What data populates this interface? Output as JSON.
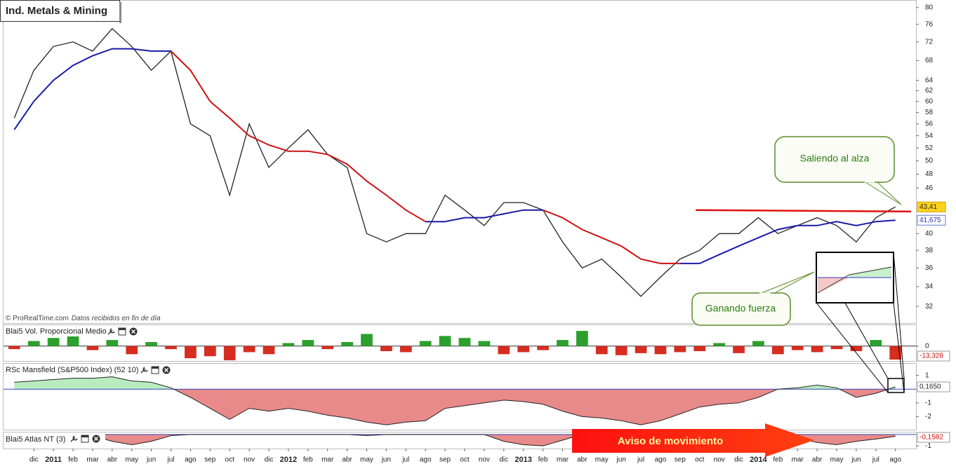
{
  "chart_data": [
    {
      "type": "line",
      "title": "Ind. Metals & Mining",
      "log": true,
      "x": [
        -1,
        0,
        1,
        2,
        3,
        4,
        5,
        6,
        7,
        8,
        9,
        10,
        11,
        12,
        13,
        14,
        15,
        16,
        17,
        18,
        19,
        20,
        21,
        22,
        23,
        24,
        25,
        26,
        27,
        28,
        29,
        30,
        31,
        32,
        33,
        34,
        35,
        36,
        37,
        38,
        39,
        40,
        41,
        42,
        43,
        44
      ],
      "series": [
        {
          "color": "#222222",
          "values": [
            57,
            66,
            71,
            72,
            70,
            75,
            71,
            66,
            70,
            56,
            54,
            45,
            56,
            49,
            52,
            55,
            51,
            49,
            40,
            39,
            40,
            40,
            45,
            43,
            41,
            44,
            44,
            43,
            39,
            36,
            37,
            35,
            33,
            35,
            37,
            38,
            40,
            40,
            42,
            40,
            41,
            42,
            41,
            39,
            42,
            43.41
          ]
        },
        {
          "color": "#1a1aa8",
          "values": [
            55,
            60,
            64,
            67,
            69,
            70.5,
            70.5,
            70,
            70,
            null,
            null,
            null,
            null,
            null,
            null,
            null,
            null,
            null,
            null,
            null,
            null,
            41.5,
            41.5,
            42,
            42,
            42.5,
            43,
            43,
            null,
            null,
            null,
            null,
            null,
            null,
            36.5,
            36.5,
            37.5,
            38.5,
            39.5,
            40.5,
            41,
            41,
            41.5,
            41,
            41.5,
            41.675
          ]
        },
        {
          "color": "#cc1111",
          "values": [
            null,
            null,
            null,
            null,
            null,
            null,
            null,
            null,
            70,
            66,
            60,
            57,
            54,
            52.5,
            51.5,
            51.5,
            51,
            49.5,
            47,
            45,
            43,
            41.5,
            null,
            null,
            null,
            null,
            null,
            43,
            42,
            40.5,
            39.5,
            38.5,
            37,
            36.5,
            36.5,
            null,
            null,
            null,
            null,
            null,
            null,
            null,
            null,
            null,
            null,
            null
          ]
        }
      ],
      "resistance": {
        "x": [
          33.8,
          44.8
        ],
        "values": [
          43,
          42.8
        ],
        "color": "#e01010"
      },
      "last_labels": [
        {
          "value": 43.41,
          "label": "43,41"
        },
        {
          "value": 41.675,
          "label": "41,675"
        }
      ],
      "xlim": [
        -1.55,
        45.05
      ],
      "ylim": [
        30.4,
        81.7
      ],
      "yticks": [
        32,
        34,
        36,
        38,
        40,
        46,
        48,
        50,
        52,
        54,
        56,
        58,
        60,
        62,
        64,
        68,
        72,
        76,
        80
      ],
      "credit": "© ProRealTime.com",
      "credit_note": "Datos recibidos en fin de día",
      "annotations": [
        "Saliendo al alza",
        "Ganando fuerza"
      ]
    },
    {
      "type": "bar",
      "title": "Blai5 Vol. Proporcional Medio",
      "x": [
        -1,
        0,
        1,
        2,
        3,
        4,
        5,
        6,
        7,
        8,
        9,
        10,
        11,
        12,
        13,
        14,
        15,
        16,
        17,
        18,
        19,
        20,
        21,
        22,
        23,
        24,
        25,
        26,
        27,
        28,
        29,
        30,
        31,
        32,
        33,
        34,
        35,
        36,
        37,
        38,
        39,
        40,
        41,
        42,
        43,
        44
      ],
      "values": [
        -3,
        5,
        8,
        10,
        -4,
        6,
        -8,
        4,
        -3,
        -12,
        -10,
        -14,
        -6,
        -8,
        3,
        6,
        -3,
        4,
        12,
        -5,
        -6,
        5,
        10,
        8,
        5,
        -8,
        -6,
        -4,
        6,
        15,
        -8,
        -9,
        -7,
        -8,
        -6,
        -5,
        3,
        -7,
        5,
        -8,
        -4,
        -6,
        -3,
        -5,
        6,
        -13.328
      ],
      "value_labels": {
        "45": "-13,328"
      },
      "up_color": "#2ca02c",
      "down_color": "#d62d20",
      "xlim": [
        -1.55,
        45.05
      ],
      "ylim": [
        -14.7,
        20.6
      ],
      "yticks": [
        0
      ]
    },
    {
      "type": "area",
      "title": "RSc Mansfield (S&P500 Index) (52 10)",
      "x": [
        -1,
        0,
        1,
        2,
        3,
        4,
        5,
        6,
        7,
        8,
        9,
        10,
        11,
        12,
        13,
        14,
        15,
        16,
        17,
        18,
        19,
        20,
        21,
        22,
        23,
        24,
        25,
        26,
        27,
        28,
        29,
        30,
        31,
        32,
        33,
        34,
        35,
        36,
        37,
        38,
        39,
        40,
        41,
        42,
        43,
        44
      ],
      "values": [
        0.5,
        0.6,
        0.7,
        0.8,
        0.8,
        0.9,
        0.6,
        0.5,
        0.1,
        -0.6,
        -1.4,
        -2.2,
        -1.4,
        -1.6,
        -1.4,
        -1.6,
        -1.9,
        -2.1,
        -2.4,
        -2.6,
        -2.4,
        -2.3,
        -1.4,
        -1.2,
        -1.0,
        -0.8,
        -0.9,
        -1.1,
        -1.6,
        -2.0,
        -2.1,
        -2.3,
        -2.6,
        -2.3,
        -1.8,
        -1.3,
        -1.1,
        -1.0,
        -0.6,
        0.0,
        0.1,
        0.3,
        0.1,
        -0.6,
        -0.3,
        0.165
      ],
      "value_labels": {
        "45": "0,1650"
      },
      "up_color": "#b8ecc0",
      "down_color": "#e88a8a",
      "xlim": [
        -1.55,
        45.05
      ],
      "ylim": [
        -2.95,
        1.85
      ],
      "yticks": [
        -2,
        -1,
        1
      ]
    },
    {
      "type": "area",
      "title": "Blai5 Atlas NT (3)",
      "x": [
        -1,
        0,
        1,
        2,
        3,
        4,
        5,
        6,
        7,
        8,
        9,
        10,
        11,
        12,
        13,
        14,
        15,
        16,
        17,
        18,
        19,
        20,
        21,
        22,
        23,
        24,
        25,
        26,
        27,
        28,
        29,
        30,
        31,
        32,
        33,
        34,
        35,
        36,
        37,
        38,
        39,
        40,
        41,
        42,
        43,
        44
      ],
      "values": [
        0,
        0,
        0,
        0,
        -0.1,
        -0.6,
        -0.9,
        -0.6,
        -0.1,
        0,
        0,
        0,
        0,
        0,
        0,
        0,
        0,
        0,
        -0.1,
        0,
        0,
        0,
        0,
        0,
        0,
        -0.6,
        -0.9,
        -1.0,
        -0.5,
        0,
        0,
        0,
        0,
        0,
        0,
        0,
        0,
        0,
        -0.2,
        -0.6,
        -0.3,
        -0.7,
        -0.9,
        -0.6,
        -0.4,
        -0.1582
      ],
      "value_labels": {
        "45": "-0,1582"
      },
      "up_color": "#b8ecc0",
      "down_color": "#e88a8a",
      "xlim": [
        -1.55,
        45.05
      ],
      "ylim": [
        -1.24,
        0.18
      ],
      "yticks": [
        -1
      ],
      "annotation": "Aviso de movimiento",
      "xticks": [
        {
          "value": 0,
          "label": "dic"
        },
        {
          "value": 1,
          "label": "2011"
        },
        {
          "value": 2,
          "label": "feb"
        },
        {
          "value": 3,
          "label": "mar"
        },
        {
          "value": 4,
          "label": "abr"
        },
        {
          "value": 5,
          "label": "may"
        },
        {
          "value": 6,
          "label": "jun"
        },
        {
          "value": 7,
          "label": "jul"
        },
        {
          "value": 8,
          "label": "ago"
        },
        {
          "value": 9,
          "label": "sep"
        },
        {
          "value": 10,
          "label": "oct"
        },
        {
          "value": 11,
          "label": "nov"
        },
        {
          "value": 12,
          "label": "dic"
        },
        {
          "value": 13,
          "label": "2012"
        },
        {
          "value": 14,
          "label": "feb"
        },
        {
          "value": 15,
          "label": "mar"
        },
        {
          "value": 16,
          "label": "abr"
        },
        {
          "value": 17,
          "label": "may"
        },
        {
          "value": 18,
          "label": "jun"
        },
        {
          "value": 19,
          "label": "jul"
        },
        {
          "value": 20,
          "label": "ago"
        },
        {
          "value": 21,
          "label": "sep"
        },
        {
          "value": 22,
          "label": "oct"
        },
        {
          "value": 23,
          "label": "nov"
        },
        {
          "value": 24,
          "label": "dic"
        },
        {
          "value": 25,
          "label": "2013"
        },
        {
          "value": 26,
          "label": "feb"
        },
        {
          "value": 27,
          "label": "mar"
        },
        {
          "value": 28,
          "label": "abr"
        },
        {
          "value": 29,
          "label": "may"
        },
        {
          "value": 30,
          "label": "jun"
        },
        {
          "value": 31,
          "label": "jul"
        },
        {
          "value": 32,
          "label": "ago"
        },
        {
          "value": 33,
          "label": "sep"
        },
        {
          "value": 34,
          "label": "oct"
        },
        {
          "value": 35,
          "label": "nov"
        },
        {
          "value": 36,
          "label": "dic"
        },
        {
          "value": 37,
          "label": "2014"
        },
        {
          "value": 38,
          "label": "feb"
        },
        {
          "value": 39,
          "label": "mar"
        },
        {
          "value": 40,
          "label": "abr"
        },
        {
          "value": 41,
          "label": "may"
        },
        {
          "value": 42,
          "label": "jun"
        },
        {
          "value": 43,
          "label": "jul"
        },
        {
          "value": 44,
          "label": "ago"
        }
      ]
    }
  ]
}
